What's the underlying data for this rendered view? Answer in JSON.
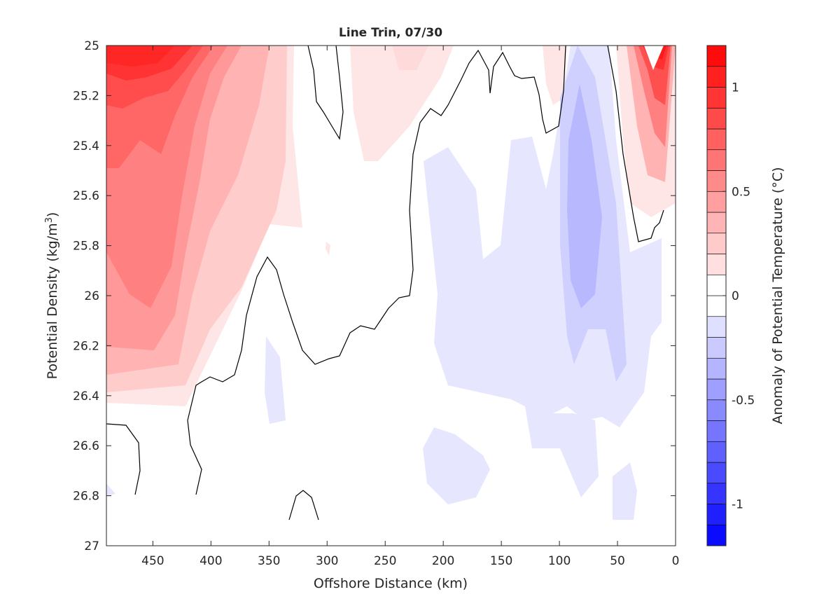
{
  "chart_data": {
    "type": "heatmap",
    "title": "Line Trin, 07/30",
    "xlabel": "Offshore Distance (km)",
    "ylabel_main": "Potential Density (kg/m",
    "ylabel_sup": "3",
    "ylabel_close": ")",
    "xlim": [
      490,
      0
    ],
    "ylim": [
      25,
      27
    ],
    "x_reversed": true,
    "y_reversed": true,
    "xticks": [
      450,
      400,
      350,
      300,
      250,
      200,
      150,
      100,
      50,
      0
    ],
    "xtick_labels": [
      "450",
      "400",
      "350",
      "300",
      "250",
      "200",
      "150",
      "100",
      "50",
      "0"
    ],
    "yticks": [
      25,
      25.2,
      25.4,
      25.6,
      25.8,
      26,
      26.2,
      26.4,
      26.6,
      26.8,
      27
    ],
    "ytick_labels": [
      "25",
      "25.2",
      "25.4",
      "25.6",
      "25.8",
      "26",
      "26.2",
      "26.4",
      "26.6",
      "26.8",
      "27"
    ],
    "colorbar": {
      "label": "Anomaly of Potential Temperature (°C)",
      "range": [
        -1.2,
        1.2
      ],
      "step": 0.1,
      "ticks": [
        -1,
        -0.5,
        0,
        0.5,
        1
      ],
      "tick_labels": [
        "-1",
        "-0.5",
        "0",
        "0.5",
        "1"
      ],
      "color_min": "#0000ff",
      "color_zero": "#ffffff",
      "color_max": "#ff0000"
    },
    "grid": false,
    "features": [
      {
        "name": "warm-core-offshore",
        "x": 445,
        "y": 25.9,
        "value": 0.7
      },
      {
        "name": "warm-core-surface-offshore",
        "x": 460,
        "y": 25.1,
        "value": 0.9
      },
      {
        "name": "warm-near-shore-surface",
        "x": 20,
        "y": 25.05,
        "value": 1.1
      },
      {
        "name": "cold-core-nearshore",
        "x": 80,
        "y": 25.7,
        "value": -0.3
      },
      {
        "name": "cold-broad-mid",
        "x": 170,
        "y": 26.1,
        "value": -0.1
      }
    ]
  }
}
